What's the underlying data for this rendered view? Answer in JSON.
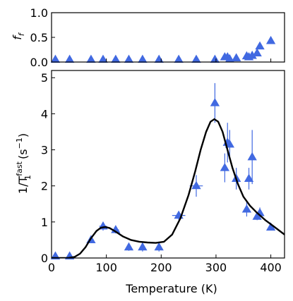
{
  "colors": {
    "marker": "#4169e1",
    "curve": "#000000",
    "axes": "#000000",
    "background": "#ffffff"
  },
  "chart_data": [
    {
      "type": "scatter",
      "panel": "top",
      "ylabel_main": "f",
      "ylabel_sub": "f",
      "xlabel": "",
      "xlim": [
        0,
        425
      ],
      "ylim": [
        0,
        1
      ],
      "yticks": [
        0.0,
        0.5,
        1.0
      ],
      "ytick_labels": [
        "0.0",
        "0.5",
        "1.0"
      ],
      "xticks": [
        0,
        100,
        200,
        300,
        400
      ],
      "xtick_labels": [],
      "series": [
        {
          "marker": "triangle",
          "points": [
            {
              "x": 7,
              "y": 0.05,
              "xerr": 0,
              "yerr": 0
            },
            {
              "x": 33,
              "y": 0.05,
              "xerr": 0,
              "yerr": 0
            },
            {
              "x": 72,
              "y": 0.05,
              "xerr": 0,
              "yerr": 0
            },
            {
              "x": 94,
              "y": 0.05,
              "xerr": 0,
              "yerr": 0
            },
            {
              "x": 117,
              "y": 0.05,
              "xerr": 0,
              "yerr": 0
            },
            {
              "x": 141,
              "y": 0.05,
              "xerr": 0,
              "yerr": 0
            },
            {
              "x": 166,
              "y": 0.05,
              "xerr": 0,
              "yerr": 0
            },
            {
              "x": 196,
              "y": 0.05,
              "xerr": 0,
              "yerr": 0
            },
            {
              "x": 232,
              "y": 0.05,
              "xerr": 0,
              "yerr": 0
            },
            {
              "x": 264,
              "y": 0.05,
              "xerr": 0,
              "yerr": 0
            },
            {
              "x": 298,
              "y": 0.05,
              "xerr": 0,
              "yerr": 0
            },
            {
              "x": 316,
              "y": 0.1,
              "xerr": 0,
              "yerr": 0
            },
            {
              "x": 321,
              "y": 0.1,
              "xerr": 0,
              "yerr": 0
            },
            {
              "x": 325,
              "y": 0.06,
              "xerr": 0,
              "yerr": 0
            },
            {
              "x": 337,
              "y": 0.08,
              "xerr": 0,
              "yerr": 0
            },
            {
              "x": 356,
              "y": 0.12,
              "xerr": 0,
              "yerr": 0
            },
            {
              "x": 360,
              "y": 0.1,
              "xerr": 0,
              "yerr": 0
            },
            {
              "x": 366,
              "y": 0.13,
              "xerr": 0,
              "yerr": 0
            },
            {
              "x": 375,
              "y": 0.18,
              "xerr": 0,
              "yerr": 0
            },
            {
              "x": 380,
              "y": 0.32,
              "xerr": 0,
              "yerr": 0
            },
            {
              "x": 400,
              "y": 0.43,
              "xerr": 0,
              "yerr": 0
            }
          ]
        }
      ]
    },
    {
      "type": "scatter",
      "panel": "bottom",
      "ylabel_main": "1/T",
      "ylabel_sub": "1",
      "ylabel_sup": "fast",
      "ylabel_unit": " (s",
      "ylabel_unit_sup": "−1",
      "ylabel_close": ")",
      "xlabel": "Temperature (K)",
      "xlim": [
        0,
        425
      ],
      "ylim": [
        0,
        5.2
      ],
      "yticks": [
        0,
        1,
        2,
        3,
        4,
        5
      ],
      "ytick_labels": [
        "0",
        "1",
        "2",
        "3",
        "4",
        "5"
      ],
      "xticks": [
        0,
        100,
        200,
        300,
        400
      ],
      "xtick_labels": [
        "0",
        "100",
        "200",
        "300",
        "400"
      ],
      "series": [
        {
          "marker": "triangle",
          "points": [
            {
              "x": 7,
              "y": 0.05,
              "xerr": 0,
              "yerr": 0
            },
            {
              "x": 33,
              "y": 0.05,
              "xerr": 0,
              "yerr": 0
            },
            {
              "x": 72,
              "y": 0.5,
              "xerr": 4,
              "yerr": 0.08
            },
            {
              "x": 94,
              "y": 0.88,
              "xerr": 7,
              "yerr": 0.12
            },
            {
              "x": 117,
              "y": 0.78,
              "xerr": 6,
              "yerr": 0.1
            },
            {
              "x": 141,
              "y": 0.3,
              "xerr": 0,
              "yerr": 0.1
            },
            {
              "x": 166,
              "y": 0.3,
              "xerr": 0,
              "yerr": 0.12
            },
            {
              "x": 196,
              "y": 0.3,
              "xerr": 4,
              "yerr": 0.12
            },
            {
              "x": 232,
              "y": 1.18,
              "xerr": 12,
              "yerr": 0.12
            },
            {
              "x": 264,
              "y": 2.0,
              "xerr": 12,
              "yerr": 0.3
            },
            {
              "x": 298,
              "y": 4.3,
              "xerr": 0,
              "yerr": 0.55
            },
            {
              "x": 316,
              "y": 2.5,
              "xerr": 0,
              "yerr": 0.4
            },
            {
              "x": 321,
              "y": 3.2,
              "xerr": 0,
              "yerr": 0.55
            },
            {
              "x": 325,
              "y": 3.15,
              "xerr": 0,
              "yerr": 0.4
            },
            {
              "x": 337,
              "y": 2.2,
              "xerr": 0,
              "yerr": 0.3
            },
            {
              "x": 356,
              "y": 1.35,
              "xerr": 0,
              "yerr": 0.2
            },
            {
              "x": 360,
              "y": 2.2,
              "xerr": 0,
              "yerr": 0.3
            },
            {
              "x": 366,
              "y": 2.8,
              "xerr": 0,
              "yerr": 0.75
            },
            {
              "x": 375,
              "y": 1.15,
              "xerr": 0,
              "yerr": 0.1
            },
            {
              "x": 380,
              "y": 1.25,
              "xerr": 0,
              "yerr": 0.15
            },
            {
              "x": 400,
              "y": 0.85,
              "xerr": 0,
              "yerr": 0.08
            }
          ]
        },
        {
          "marker": "line",
          "points": [
            {
              "x": 0,
              "y": 0.0
            },
            {
              "x": 30,
              "y": 0.0
            },
            {
              "x": 42,
              "y": 0.03
            },
            {
              "x": 52,
              "y": 0.12
            },
            {
              "x": 62,
              "y": 0.3
            },
            {
              "x": 72,
              "y": 0.55
            },
            {
              "x": 82,
              "y": 0.75
            },
            {
              "x": 90,
              "y": 0.84
            },
            {
              "x": 98,
              "y": 0.86
            },
            {
              "x": 106,
              "y": 0.83
            },
            {
              "x": 116,
              "y": 0.74
            },
            {
              "x": 130,
              "y": 0.6
            },
            {
              "x": 145,
              "y": 0.5
            },
            {
              "x": 160,
              "y": 0.45
            },
            {
              "x": 175,
              "y": 0.43
            },
            {
              "x": 190,
              "y": 0.42
            },
            {
              "x": 205,
              "y": 0.45
            },
            {
              "x": 220,
              "y": 0.65
            },
            {
              "x": 235,
              "y": 1.1
            },
            {
              "x": 250,
              "y": 1.75
            },
            {
              "x": 262,
              "y": 2.4
            },
            {
              "x": 272,
              "y": 3.0
            },
            {
              "x": 282,
              "y": 3.5
            },
            {
              "x": 290,
              "y": 3.78
            },
            {
              "x": 297,
              "y": 3.85
            },
            {
              "x": 304,
              "y": 3.78
            },
            {
              "x": 312,
              "y": 3.5
            },
            {
              "x": 320,
              "y": 3.05
            },
            {
              "x": 330,
              "y": 2.5
            },
            {
              "x": 340,
              "y": 2.05
            },
            {
              "x": 350,
              "y": 1.7
            },
            {
              "x": 362,
              "y": 1.45
            },
            {
              "x": 375,
              "y": 1.25
            },
            {
              "x": 390,
              "y": 1.05
            },
            {
              "x": 405,
              "y": 0.88
            },
            {
              "x": 425,
              "y": 0.65
            }
          ]
        }
      ]
    }
  ]
}
